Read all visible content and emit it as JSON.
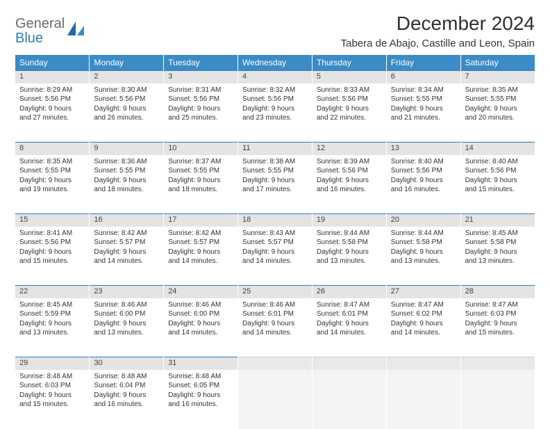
{
  "logo": {
    "text1": "General",
    "text2": "Blue"
  },
  "title": "December 2024",
  "location": "Tabera de Abajo, Castille and Leon, Spain",
  "day_headers": [
    "Sunday",
    "Monday",
    "Tuesday",
    "Wednesday",
    "Thursday",
    "Friday",
    "Saturday"
  ],
  "colors": {
    "header_bg": "#3b8bc6",
    "header_fg": "#ffffff",
    "daynum_bg": "#e4e4e4",
    "rule": "#2a7bbd",
    "logo_general": "#6a6a6a",
    "logo_blue": "#2a7bbd"
  },
  "weeks": [
    [
      {
        "n": "1",
        "sr": "Sunrise: 8:29 AM",
        "ss": "Sunset: 5:56 PM",
        "d1": "Daylight: 9 hours",
        "d2": "and 27 minutes."
      },
      {
        "n": "2",
        "sr": "Sunrise: 8:30 AM",
        "ss": "Sunset: 5:56 PM",
        "d1": "Daylight: 9 hours",
        "d2": "and 26 minutes."
      },
      {
        "n": "3",
        "sr": "Sunrise: 8:31 AM",
        "ss": "Sunset: 5:56 PM",
        "d1": "Daylight: 9 hours",
        "d2": "and 25 minutes."
      },
      {
        "n": "4",
        "sr": "Sunrise: 8:32 AM",
        "ss": "Sunset: 5:56 PM",
        "d1": "Daylight: 9 hours",
        "d2": "and 23 minutes."
      },
      {
        "n": "5",
        "sr": "Sunrise: 8:33 AM",
        "ss": "Sunset: 5:56 PM",
        "d1": "Daylight: 9 hours",
        "d2": "and 22 minutes."
      },
      {
        "n": "6",
        "sr": "Sunrise: 8:34 AM",
        "ss": "Sunset: 5:55 PM",
        "d1": "Daylight: 9 hours",
        "d2": "and 21 minutes."
      },
      {
        "n": "7",
        "sr": "Sunrise: 8:35 AM",
        "ss": "Sunset: 5:55 PM",
        "d1": "Daylight: 9 hours",
        "d2": "and 20 minutes."
      }
    ],
    [
      {
        "n": "8",
        "sr": "Sunrise: 8:35 AM",
        "ss": "Sunset: 5:55 PM",
        "d1": "Daylight: 9 hours",
        "d2": "and 19 minutes."
      },
      {
        "n": "9",
        "sr": "Sunrise: 8:36 AM",
        "ss": "Sunset: 5:55 PM",
        "d1": "Daylight: 9 hours",
        "d2": "and 18 minutes."
      },
      {
        "n": "10",
        "sr": "Sunrise: 8:37 AM",
        "ss": "Sunset: 5:55 PM",
        "d1": "Daylight: 9 hours",
        "d2": "and 18 minutes."
      },
      {
        "n": "11",
        "sr": "Sunrise: 8:38 AM",
        "ss": "Sunset: 5:55 PM",
        "d1": "Daylight: 9 hours",
        "d2": "and 17 minutes."
      },
      {
        "n": "12",
        "sr": "Sunrise: 8:39 AM",
        "ss": "Sunset: 5:56 PM",
        "d1": "Daylight: 9 hours",
        "d2": "and 16 minutes."
      },
      {
        "n": "13",
        "sr": "Sunrise: 8:40 AM",
        "ss": "Sunset: 5:56 PM",
        "d1": "Daylight: 9 hours",
        "d2": "and 16 minutes."
      },
      {
        "n": "14",
        "sr": "Sunrise: 8:40 AM",
        "ss": "Sunset: 5:56 PM",
        "d1": "Daylight: 9 hours",
        "d2": "and 15 minutes."
      }
    ],
    [
      {
        "n": "15",
        "sr": "Sunrise: 8:41 AM",
        "ss": "Sunset: 5:56 PM",
        "d1": "Daylight: 9 hours",
        "d2": "and 15 minutes."
      },
      {
        "n": "16",
        "sr": "Sunrise: 8:42 AM",
        "ss": "Sunset: 5:57 PM",
        "d1": "Daylight: 9 hours",
        "d2": "and 14 minutes."
      },
      {
        "n": "17",
        "sr": "Sunrise: 8:42 AM",
        "ss": "Sunset: 5:57 PM",
        "d1": "Daylight: 9 hours",
        "d2": "and 14 minutes."
      },
      {
        "n": "18",
        "sr": "Sunrise: 8:43 AM",
        "ss": "Sunset: 5:57 PM",
        "d1": "Daylight: 9 hours",
        "d2": "and 14 minutes."
      },
      {
        "n": "19",
        "sr": "Sunrise: 8:44 AM",
        "ss": "Sunset: 5:58 PM",
        "d1": "Daylight: 9 hours",
        "d2": "and 13 minutes."
      },
      {
        "n": "20",
        "sr": "Sunrise: 8:44 AM",
        "ss": "Sunset: 5:58 PM",
        "d1": "Daylight: 9 hours",
        "d2": "and 13 minutes."
      },
      {
        "n": "21",
        "sr": "Sunrise: 8:45 AM",
        "ss": "Sunset: 5:58 PM",
        "d1": "Daylight: 9 hours",
        "d2": "and 13 minutes."
      }
    ],
    [
      {
        "n": "22",
        "sr": "Sunrise: 8:45 AM",
        "ss": "Sunset: 5:59 PM",
        "d1": "Daylight: 9 hours",
        "d2": "and 13 minutes."
      },
      {
        "n": "23",
        "sr": "Sunrise: 8:46 AM",
        "ss": "Sunset: 6:00 PM",
        "d1": "Daylight: 9 hours",
        "d2": "and 13 minutes."
      },
      {
        "n": "24",
        "sr": "Sunrise: 8:46 AM",
        "ss": "Sunset: 6:00 PM",
        "d1": "Daylight: 9 hours",
        "d2": "and 14 minutes."
      },
      {
        "n": "25",
        "sr": "Sunrise: 8:46 AM",
        "ss": "Sunset: 6:01 PM",
        "d1": "Daylight: 9 hours",
        "d2": "and 14 minutes."
      },
      {
        "n": "26",
        "sr": "Sunrise: 8:47 AM",
        "ss": "Sunset: 6:01 PM",
        "d1": "Daylight: 9 hours",
        "d2": "and 14 minutes."
      },
      {
        "n": "27",
        "sr": "Sunrise: 8:47 AM",
        "ss": "Sunset: 6:02 PM",
        "d1": "Daylight: 9 hours",
        "d2": "and 14 minutes."
      },
      {
        "n": "28",
        "sr": "Sunrise: 8:47 AM",
        "ss": "Sunset: 6:03 PM",
        "d1": "Daylight: 9 hours",
        "d2": "and 15 minutes."
      }
    ],
    [
      {
        "n": "29",
        "sr": "Sunrise: 8:48 AM",
        "ss": "Sunset: 6:03 PM",
        "d1": "Daylight: 9 hours",
        "d2": "and 15 minutes."
      },
      {
        "n": "30",
        "sr": "Sunrise: 8:48 AM",
        "ss": "Sunset: 6:04 PM",
        "d1": "Daylight: 9 hours",
        "d2": "and 16 minutes."
      },
      {
        "n": "31",
        "sr": "Sunrise: 8:48 AM",
        "ss": "Sunset: 6:05 PM",
        "d1": "Daylight: 9 hours",
        "d2": "and 16 minutes."
      },
      null,
      null,
      null,
      null
    ]
  ]
}
